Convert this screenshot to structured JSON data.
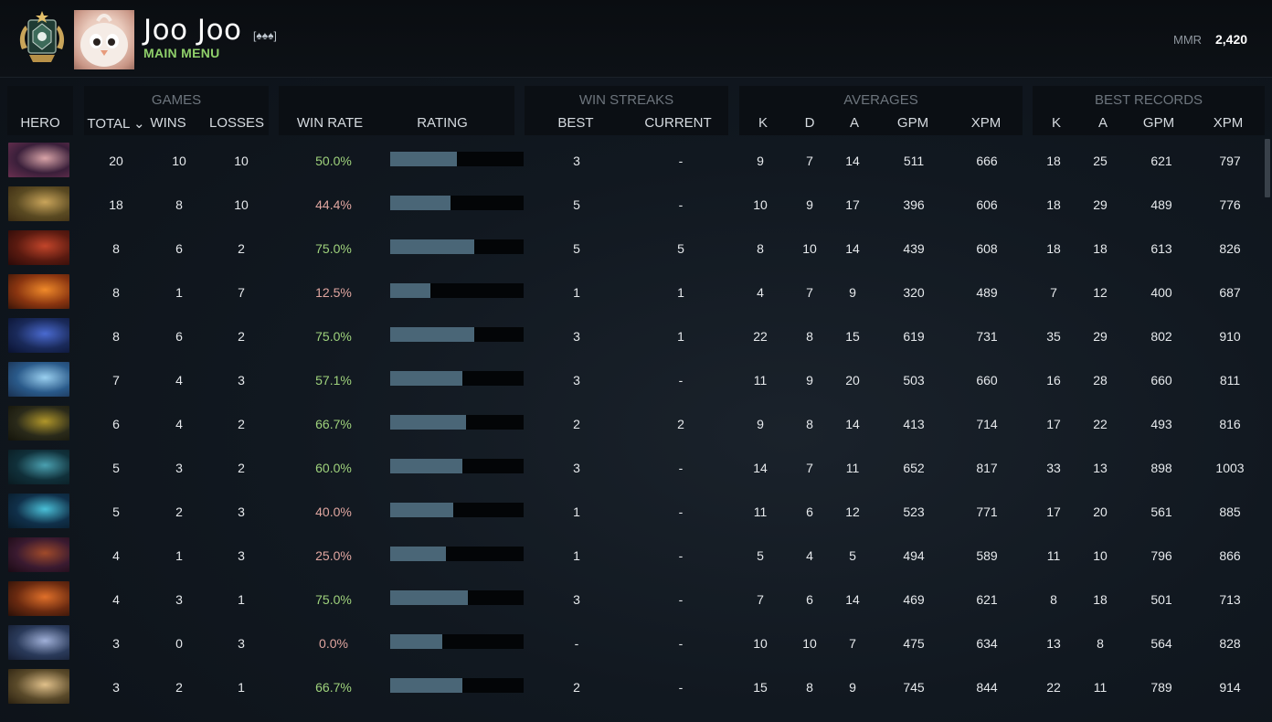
{
  "player": {
    "name": "Joo Joo",
    "tag": "[♠♠♠]",
    "main_menu": "MAIN MENU",
    "mmr_label": "MMR",
    "mmr_value": "2,420"
  },
  "groups": {
    "games": "GAMES",
    "win_streaks": "WIN STREAKS",
    "averages": "AVERAGES",
    "best_records": "BEST RECORDS"
  },
  "columns": {
    "hero": "HERO",
    "total": "TOTAL ⌄",
    "wins": "WINS",
    "losses": "LOSSES",
    "win_rate": "WIN RATE",
    "rating": "RATING",
    "best": "BEST",
    "current": "CURRENT",
    "k": "K",
    "d": "D",
    "a": "A",
    "gpm": "GPM",
    "xpm": "XPM",
    "best_k": "K",
    "best_a": "A",
    "best_gpm": "GPM",
    "best_xpm": "XPM"
  },
  "colors": {
    "accent_green": "#9fd27c",
    "loss_red": "#e0a6a0",
    "rating_bar": "#4a6677"
  },
  "rows": [
    {
      "portrait": "portrait-1",
      "total": "20",
      "wins": "10",
      "losses": "10",
      "win_rate": "50.0%",
      "rating": 0.5,
      "best": "3",
      "current": "-",
      "k": "9",
      "d": "7",
      "a": "14",
      "gpm": "511",
      "xpm": "666",
      "best_k": "18",
      "best_a": "25",
      "best_gpm": "621",
      "best_xpm": "797"
    },
    {
      "portrait": "portrait-2",
      "total": "18",
      "wins": "8",
      "losses": "10",
      "win_rate": "44.4%",
      "rating": 0.45,
      "best": "5",
      "current": "-",
      "k": "10",
      "d": "9",
      "a": "17",
      "gpm": "396",
      "xpm": "606",
      "best_k": "18",
      "best_a": "29",
      "best_gpm": "489",
      "best_xpm": "776"
    },
    {
      "portrait": "portrait-3",
      "total": "8",
      "wins": "6",
      "losses": "2",
      "win_rate": "75.0%",
      "rating": 0.63,
      "best": "5",
      "current": "5",
      "k": "8",
      "d": "10",
      "a": "14",
      "gpm": "439",
      "xpm": "608",
      "best_k": "18",
      "best_a": "18",
      "best_gpm": "613",
      "best_xpm": "826"
    },
    {
      "portrait": "portrait-4",
      "total": "8",
      "wins": "1",
      "losses": "7",
      "win_rate": "12.5%",
      "rating": 0.3,
      "best": "1",
      "current": "1",
      "k": "4",
      "d": "7",
      "a": "9",
      "gpm": "320",
      "xpm": "489",
      "best_k": "7",
      "best_a": "12",
      "best_gpm": "400",
      "best_xpm": "687"
    },
    {
      "portrait": "portrait-5",
      "total": "8",
      "wins": "6",
      "losses": "2",
      "win_rate": "75.0%",
      "rating": 0.63,
      "best": "3",
      "current": "1",
      "k": "22",
      "d": "8",
      "a": "15",
      "gpm": "619",
      "xpm": "731",
      "best_k": "35",
      "best_a": "29",
      "best_gpm": "802",
      "best_xpm": "910"
    },
    {
      "portrait": "portrait-6",
      "total": "7",
      "wins": "4",
      "losses": "3",
      "win_rate": "57.1%",
      "rating": 0.54,
      "best": "3",
      "current": "-",
      "k": "11",
      "d": "9",
      "a": "20",
      "gpm": "503",
      "xpm": "660",
      "best_k": "16",
      "best_a": "28",
      "best_gpm": "660",
      "best_xpm": "811"
    },
    {
      "portrait": "portrait-7",
      "total": "6",
      "wins": "4",
      "losses": "2",
      "win_rate": "66.7%",
      "rating": 0.57,
      "best": "2",
      "current": "2",
      "k": "9",
      "d": "8",
      "a": "14",
      "gpm": "413",
      "xpm": "714",
      "best_k": "17",
      "best_a": "22",
      "best_gpm": "493",
      "best_xpm": "816"
    },
    {
      "portrait": "portrait-8",
      "total": "5",
      "wins": "3",
      "losses": "2",
      "win_rate": "60.0%",
      "rating": 0.54,
      "best": "3",
      "current": "-",
      "k": "14",
      "d": "7",
      "a": "11",
      "gpm": "652",
      "xpm": "817",
      "best_k": "33",
      "best_a": "13",
      "best_gpm": "898",
      "best_xpm": "1003"
    },
    {
      "portrait": "portrait-9",
      "total": "5",
      "wins": "2",
      "losses": "3",
      "win_rate": "40.0%",
      "rating": 0.47,
      "best": "1",
      "current": "-",
      "k": "11",
      "d": "6",
      "a": "12",
      "gpm": "523",
      "xpm": "771",
      "best_k": "17",
      "best_a": "20",
      "best_gpm": "561",
      "best_xpm": "885"
    },
    {
      "portrait": "portrait-10",
      "total": "4",
      "wins": "1",
      "losses": "3",
      "win_rate": "25.0%",
      "rating": 0.42,
      "best": "1",
      "current": "-",
      "k": "5",
      "d": "4",
      "a": "5",
      "gpm": "494",
      "xpm": "589",
      "best_k": "11",
      "best_a": "10",
      "best_gpm": "796",
      "best_xpm": "866"
    },
    {
      "portrait": "portrait-11",
      "total": "4",
      "wins": "3",
      "losses": "1",
      "win_rate": "75.0%",
      "rating": 0.58,
      "best": "3",
      "current": "-",
      "k": "7",
      "d": "6",
      "a": "14",
      "gpm": "469",
      "xpm": "621",
      "best_k": "8",
      "best_a": "18",
      "best_gpm": "501",
      "best_xpm": "713"
    },
    {
      "portrait": "portrait-12",
      "total": "3",
      "wins": "0",
      "losses": "3",
      "win_rate": "0.0%",
      "rating": 0.39,
      "best": "-",
      "current": "-",
      "k": "10",
      "d": "10",
      "a": "7",
      "gpm": "475",
      "xpm": "634",
      "best_k": "13",
      "best_a": "8",
      "best_gpm": "564",
      "best_xpm": "828"
    },
    {
      "portrait": "portrait-13",
      "total": "3",
      "wins": "2",
      "losses": "1",
      "win_rate": "66.7%",
      "rating": 0.54,
      "best": "2",
      "current": "-",
      "k": "15",
      "d": "8",
      "a": "9",
      "gpm": "745",
      "xpm": "844",
      "best_k": "22",
      "best_a": "11",
      "best_gpm": "789",
      "best_xpm": "914"
    }
  ]
}
